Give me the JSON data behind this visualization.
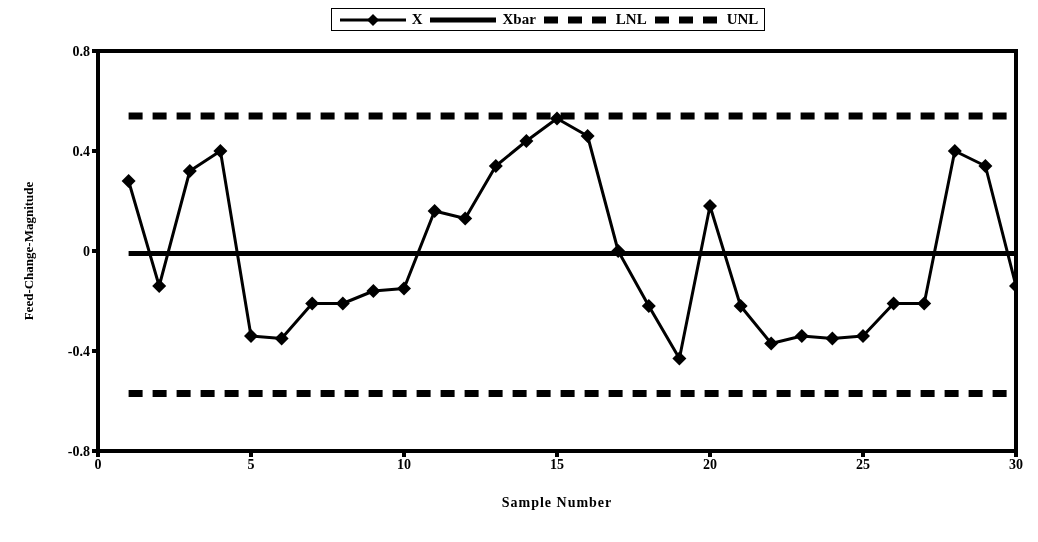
{
  "chart_data": {
    "type": "line",
    "xlabel": "Sample Number",
    "ylabel": "Feed-Change-Magnitude",
    "x": [
      1,
      2,
      3,
      4,
      5,
      6,
      7,
      8,
      9,
      10,
      11,
      12,
      13,
      14,
      15,
      16,
      17,
      18,
      19,
      20,
      21,
      22,
      23,
      24,
      25,
      26,
      27,
      28,
      29,
      30
    ],
    "series": [
      {
        "name": "X",
        "color": "#000000",
        "marker": "diamond",
        "line_style": "solid",
        "values": [
          0.28,
          -0.14,
          0.32,
          0.4,
          -0.34,
          -0.35,
          -0.21,
          -0.21,
          -0.16,
          -0.15,
          0.16,
          0.13,
          0.34,
          0.44,
          0.53,
          0.46,
          0.0,
          -0.22,
          -0.43,
          0.18,
          -0.22,
          -0.37,
          -0.34,
          -0.35,
          -0.34,
          -0.21,
          -0.21,
          0.4,
          0.34,
          -0.14
        ]
      },
      {
        "name": "Xbar",
        "color": "#000000",
        "marker": "none",
        "line_style": "solid",
        "values": [
          -0.01,
          -0.01,
          -0.01,
          -0.01,
          -0.01,
          -0.01,
          -0.01,
          -0.01,
          -0.01,
          -0.01,
          -0.01,
          -0.01,
          -0.01,
          -0.01,
          -0.01,
          -0.01,
          -0.01,
          -0.01,
          -0.01,
          -0.01,
          -0.01,
          -0.01,
          -0.01,
          -0.01,
          -0.01,
          -0.01,
          -0.01,
          -0.01,
          -0.01,
          -0.01
        ]
      },
      {
        "name": "LNL",
        "color": "#000000",
        "marker": "none",
        "line_style": "dashed",
        "values": [
          -0.57,
          -0.57,
          -0.57,
          -0.57,
          -0.57,
          -0.57,
          -0.57,
          -0.57,
          -0.57,
          -0.57,
          -0.57,
          -0.57,
          -0.57,
          -0.57,
          -0.57,
          -0.57,
          -0.57,
          -0.57,
          -0.57,
          -0.57,
          -0.57,
          -0.57,
          -0.57,
          -0.57,
          -0.57,
          -0.57,
          -0.57,
          -0.57,
          -0.57,
          -0.57
        ]
      },
      {
        "name": "UNL",
        "color": "#000000",
        "marker": "none",
        "line_style": "dashed",
        "values": [
          0.54,
          0.54,
          0.54,
          0.54,
          0.54,
          0.54,
          0.54,
          0.54,
          0.54,
          0.54,
          0.54,
          0.54,
          0.54,
          0.54,
          0.54,
          0.54,
          0.54,
          0.54,
          0.54,
          0.54,
          0.54,
          0.54,
          0.54,
          0.54,
          0.54,
          0.54,
          0.54,
          0.54,
          0.54,
          0.54
        ]
      }
    ],
    "xlim": [
      0,
      30
    ],
    "xticks": [
      0,
      5,
      10,
      15,
      20,
      25,
      30
    ],
    "ylim": [
      -0.8,
      0.8
    ],
    "yticks": [
      -0.8,
      -0.4,
      0,
      0.4,
      0.8
    ],
    "grid": false,
    "legend": "top"
  }
}
